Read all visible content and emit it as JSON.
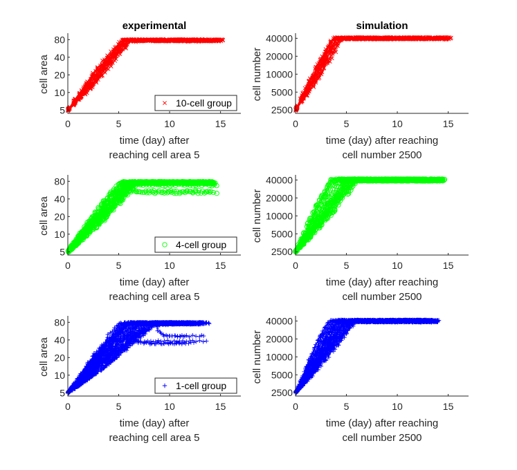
{
  "colors": {
    "red": "#ff0000",
    "green": "#00ff00",
    "blue": "#0000ff",
    "axis": "#262626"
  },
  "chart_data": [
    {
      "type": "scatter",
      "title": "experimental",
      "xlabel": [
        "time (day) after",
        "reaching cell area 5"
      ],
      "ylabel": "cell area",
      "xlim": [
        0,
        17
      ],
      "xticks": [
        0,
        5,
        10,
        15
      ],
      "yscale": "log",
      "ylim": [
        4.4,
        95
      ],
      "yticks": [
        5,
        10,
        20,
        40,
        80
      ],
      "legend": {
        "label": "10-cell group",
        "marker": "x",
        "placement": "bottom-right"
      },
      "series": [
        {
          "color": "#ff0000",
          "marker": "x",
          "n_traces": 30,
          "start": 5,
          "plateau": 78,
          "t_plateau": [
            5.2,
            6.3
          ],
          "t_end": [
            14.6,
            15.4
          ],
          "final_dip": [
            0.95,
            1.0
          ]
        }
      ]
    },
    {
      "type": "scatter",
      "title": "simulation",
      "xlabel": [
        "time (day) after reaching",
        "cell number 2500"
      ],
      "ylabel": "cell number",
      "xlim": [
        0,
        17
      ],
      "xticks": [
        0,
        5,
        10,
        15
      ],
      "yscale": "log",
      "ylim": [
        2200,
        45000
      ],
      "yticks": [
        2500,
        5000,
        10000,
        20000,
        40000
      ],
      "series": [
        {
          "color": "#ff0000",
          "marker": "x",
          "n_traces": 30,
          "start": 2500,
          "plateau": 40000,
          "t_plateau": [
            3.6,
            4.8
          ],
          "t_end": [
            14.6,
            15.4
          ],
          "final_dip": [
            0.98,
            1.0
          ]
        }
      ]
    },
    {
      "type": "scatter",
      "xlabel": [
        "time (day) after",
        "reaching cell area 5"
      ],
      "ylabel": "cell area",
      "xlim": [
        0,
        17
      ],
      "xticks": [
        0,
        5,
        10,
        15
      ],
      "yscale": "log",
      "ylim": [
        4.4,
        95
      ],
      "yticks": [
        5,
        10,
        20,
        40,
        80
      ],
      "legend": {
        "label": "4-cell group",
        "marker": "o",
        "placement": "bottom-right"
      },
      "series": [
        {
          "color": "#00ff00",
          "marker": "o",
          "n_traces": 24,
          "start": 5,
          "plateau": 76,
          "t_plateau": [
            5.0,
            7.0
          ],
          "t_end": [
            13.6,
            14.8
          ],
          "final_dip": [
            0.6,
            1.0
          ]
        }
      ]
    },
    {
      "type": "scatter",
      "xlabel": [
        "time (day) after reaching",
        "cell number 2500"
      ],
      "ylabel": "cell number",
      "xlim": [
        0,
        17
      ],
      "xticks": [
        0,
        5,
        10,
        15
      ],
      "yscale": "log",
      "ylim": [
        2200,
        45000
      ],
      "yticks": [
        2500,
        5000,
        10000,
        20000,
        40000
      ],
      "series": [
        {
          "color": "#00ff00",
          "marker": "o",
          "n_traces": 24,
          "start": 2500,
          "plateau": 40000,
          "t_plateau": [
            3.4,
            6.2
          ],
          "t_end": [
            13.6,
            14.8
          ],
          "final_dip": [
            0.98,
            1.0
          ]
        }
      ]
    },
    {
      "type": "scatter",
      "xlabel": [
        "time (day) after",
        "reaching cell area 5"
      ],
      "ylabel": "cell area",
      "xlim": [
        0,
        17
      ],
      "xticks": [
        0,
        5,
        10,
        15
      ],
      "yscale": "log",
      "ylim": [
        4.4,
        95
      ],
      "yticks": [
        5,
        10,
        20,
        40,
        80
      ],
      "legend": {
        "label": "1-cell group",
        "marker": "+",
        "placement": "bottom-right"
      },
      "series": [
        {
          "color": "#0000ff",
          "marker": "+",
          "n_traces": 45,
          "start": 5,
          "plateau": 77,
          "t_plateau": [
            4.8,
            8.8
          ],
          "t_end": [
            11.2,
            14.0
          ],
          "final_dip": [
            0.45,
            1.0
          ]
        }
      ]
    },
    {
      "type": "scatter",
      "xlabel": [
        "time (day) after reaching",
        "cell number 2500"
      ],
      "ylabel": "cell number",
      "xlim": [
        0,
        17
      ],
      "xticks": [
        0,
        5,
        10,
        15
      ],
      "yscale": "log",
      "ylim": [
        2200,
        45000
      ],
      "yticks": [
        2500,
        5000,
        10000,
        20000,
        40000
      ],
      "series": [
        {
          "color": "#0000ff",
          "marker": "+",
          "n_traces": 45,
          "start": 2500,
          "plateau": 40000,
          "t_plateau": [
            3.2,
            6.0
          ],
          "t_end": [
            13.0,
            14.2
          ],
          "final_dip": [
            0.98,
            1.0
          ]
        }
      ]
    }
  ]
}
